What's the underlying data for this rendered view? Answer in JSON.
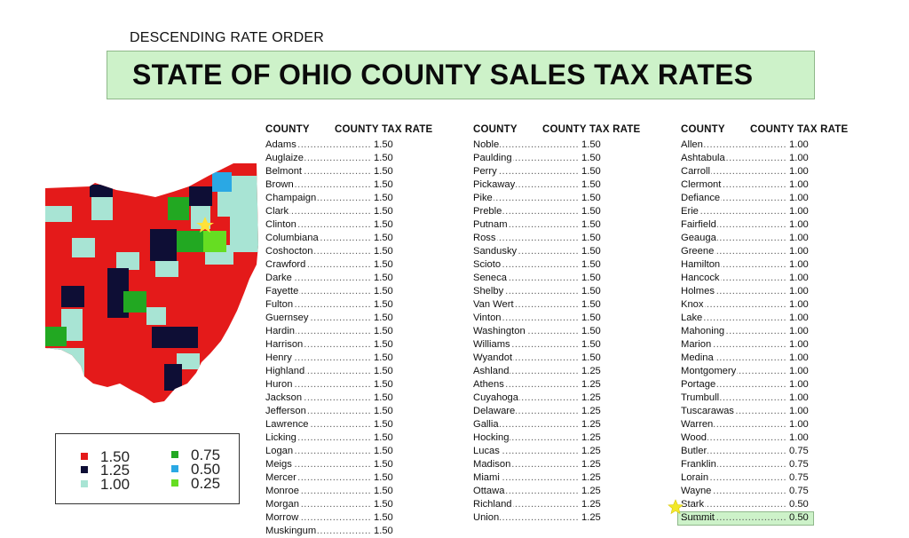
{
  "subtitle": "DESCENDING RATE ORDER",
  "title": "STATE OF OHIO COUNTY SALES TAX RATES",
  "colors": {
    "r150": "#e41a1a",
    "r125": "#0e0e35",
    "r100": "#a8e4d4",
    "r075": "#22a822",
    "r050": "#2aa8e4",
    "r025": "#66dd22"
  },
  "legend": [
    {
      "label": "1.50",
      "color": "#e41a1a"
    },
    {
      "label": "1.25",
      "color": "#0e0e35"
    },
    {
      "label": "1.00",
      "color": "#a8e4d4"
    },
    {
      "label": "0.75",
      "color": "#22a822"
    },
    {
      "label": "0.50",
      "color": "#2aa8e4"
    },
    {
      "label": "0.25",
      "color": "#66dd22"
    }
  ],
  "columns": [
    {
      "header_county": "COUNTY",
      "header_rate": "COUNTY TAX RATE",
      "rows": [
        {
          "county": "Adams",
          "rate": "1.50"
        },
        {
          "county": "Auglaize",
          "rate": "1.50"
        },
        {
          "county": "Belmont",
          "rate": "1.50"
        },
        {
          "county": "Brown",
          "rate": "1.50"
        },
        {
          "county": "Champaign",
          "rate": "1.50"
        },
        {
          "county": "Clark",
          "rate": "1.50"
        },
        {
          "county": "Clinton",
          "rate": "1.50"
        },
        {
          "county": "Columbiana",
          "rate": "1.50"
        },
        {
          "county": "Coshocton",
          "rate": "1.50"
        },
        {
          "county": "Crawford",
          "rate": "1.50"
        },
        {
          "county": "Darke",
          "rate": "1.50"
        },
        {
          "county": "Fayette",
          "rate": "1.50"
        },
        {
          "county": "Fulton",
          "rate": "1.50"
        },
        {
          "county": "Guernsey",
          "rate": "1.50"
        },
        {
          "county": "Hardin",
          "rate": "1.50"
        },
        {
          "county": "Harrison",
          "rate": "1.50"
        },
        {
          "county": "Henry",
          "rate": "1.50"
        },
        {
          "county": "Highland",
          "rate": "1.50"
        },
        {
          "county": "Huron",
          "rate": "1.50"
        },
        {
          "county": "Jackson",
          "rate": "1.50"
        },
        {
          "county": "Jefferson",
          "rate": "1.50"
        },
        {
          "county": "Lawrence",
          "rate": "1.50"
        },
        {
          "county": "Licking",
          "rate": "1.50"
        },
        {
          "county": "Logan",
          "rate": "1.50"
        },
        {
          "county": "Meigs",
          "rate": "1.50"
        },
        {
          "county": "Mercer",
          "rate": "1.50"
        },
        {
          "county": "Monroe",
          "rate": "1.50"
        },
        {
          "county": "Morgan",
          "rate": "1.50"
        },
        {
          "county": "Morrow",
          "rate": "1.50"
        },
        {
          "county": "Muskingum",
          "rate": "1.50"
        }
      ]
    },
    {
      "header_county": "COUNTY",
      "header_rate": "COUNTY TAX RATE",
      "rows": [
        {
          "county": "Noble",
          "rate": "1.50"
        },
        {
          "county": "Paulding",
          "rate": "1.50"
        },
        {
          "county": "Perry",
          "rate": "1.50"
        },
        {
          "county": "Pickaway",
          "rate": "1.50"
        },
        {
          "county": "Pike",
          "rate": "1.50"
        },
        {
          "county": "Preble",
          "rate": "1.50"
        },
        {
          "county": "Putnam",
          "rate": "1.50"
        },
        {
          "county": "Ross",
          "rate": "1.50"
        },
        {
          "county": "Sandusky",
          "rate": "1.50"
        },
        {
          "county": "Scioto",
          "rate": "1.50"
        },
        {
          "county": "Seneca",
          "rate": "1.50"
        },
        {
          "county": "Shelby",
          "rate": "1.50"
        },
        {
          "county": "Van Wert",
          "rate": "1.50"
        },
        {
          "county": "Vinton",
          "rate": "1.50"
        },
        {
          "county": "Washington",
          "rate": "1.50"
        },
        {
          "county": "Williams",
          "rate": "1.50"
        },
        {
          "county": "Wyandot",
          "rate": "1.50"
        },
        {
          "county": "Ashland",
          "rate": "1.25"
        },
        {
          "county": "Athens",
          "rate": "1.25"
        },
        {
          "county": "Cuyahoga",
          "rate": "1.25"
        },
        {
          "county": "Delaware",
          "rate": "1.25"
        },
        {
          "county": "Gallia",
          "rate": "1.25"
        },
        {
          "county": "Hocking",
          "rate": "1.25"
        },
        {
          "county": "Lucas",
          "rate": "1.25"
        },
        {
          "county": "Madison",
          "rate": "1.25"
        },
        {
          "county": "Miami",
          "rate": "1.25"
        },
        {
          "county": "Ottawa",
          "rate": "1.25"
        },
        {
          "county": "Richland",
          "rate": "1.25"
        },
        {
          "county": "Union",
          "rate": "1.25"
        }
      ]
    },
    {
      "header_county": "COUNTY",
      "header_rate": "COUNTY TAX RATE",
      "rows": [
        {
          "county": "Allen",
          "rate": "1.00"
        },
        {
          "county": "Ashtabula",
          "rate": "1.00"
        },
        {
          "county": "Carroll",
          "rate": "1.00"
        },
        {
          "county": "Clermont",
          "rate": "1.00"
        },
        {
          "county": "Defiance",
          "rate": "1.00"
        },
        {
          "county": "Erie",
          "rate": "1.00"
        },
        {
          "county": "Fairfield",
          "rate": "1.00"
        },
        {
          "county": "Geauga",
          "rate": "1.00"
        },
        {
          "county": "Greene",
          "rate": "1.00"
        },
        {
          "county": "Hamilton",
          "rate": "1.00"
        },
        {
          "county": "Hancock",
          "rate": "1.00"
        },
        {
          "county": "Holmes",
          "rate": "1.00"
        },
        {
          "county": "Knox",
          "rate": "1.00"
        },
        {
          "county": "Lake",
          "rate": "1.00"
        },
        {
          "county": "Mahoning",
          "rate": "1.00"
        },
        {
          "county": "Marion",
          "rate": "1.00"
        },
        {
          "county": "Medina",
          "rate": "1.00"
        },
        {
          "county": "Montgomery",
          "rate": "1.00"
        },
        {
          "county": "Portage",
          "rate": "1.00"
        },
        {
          "county": "Trumbull",
          "rate": "1.00"
        },
        {
          "county": "Tuscarawas",
          "rate": "1.00"
        },
        {
          "county": "Warren",
          "rate": "1.00"
        },
        {
          "county": "Wood",
          "rate": "1.00"
        },
        {
          "county": "Butler",
          "rate": "0.75"
        },
        {
          "county": "Franklin",
          "rate": "0.75"
        },
        {
          "county": "Lorain",
          "rate": "0.75"
        },
        {
          "county": "Wayne",
          "rate": "0.75"
        },
        {
          "county": "Stark",
          "rate": "0.50"
        },
        {
          "county": "Summit",
          "rate": "0.50",
          "highlighted": true
        }
      ]
    }
  ]
}
